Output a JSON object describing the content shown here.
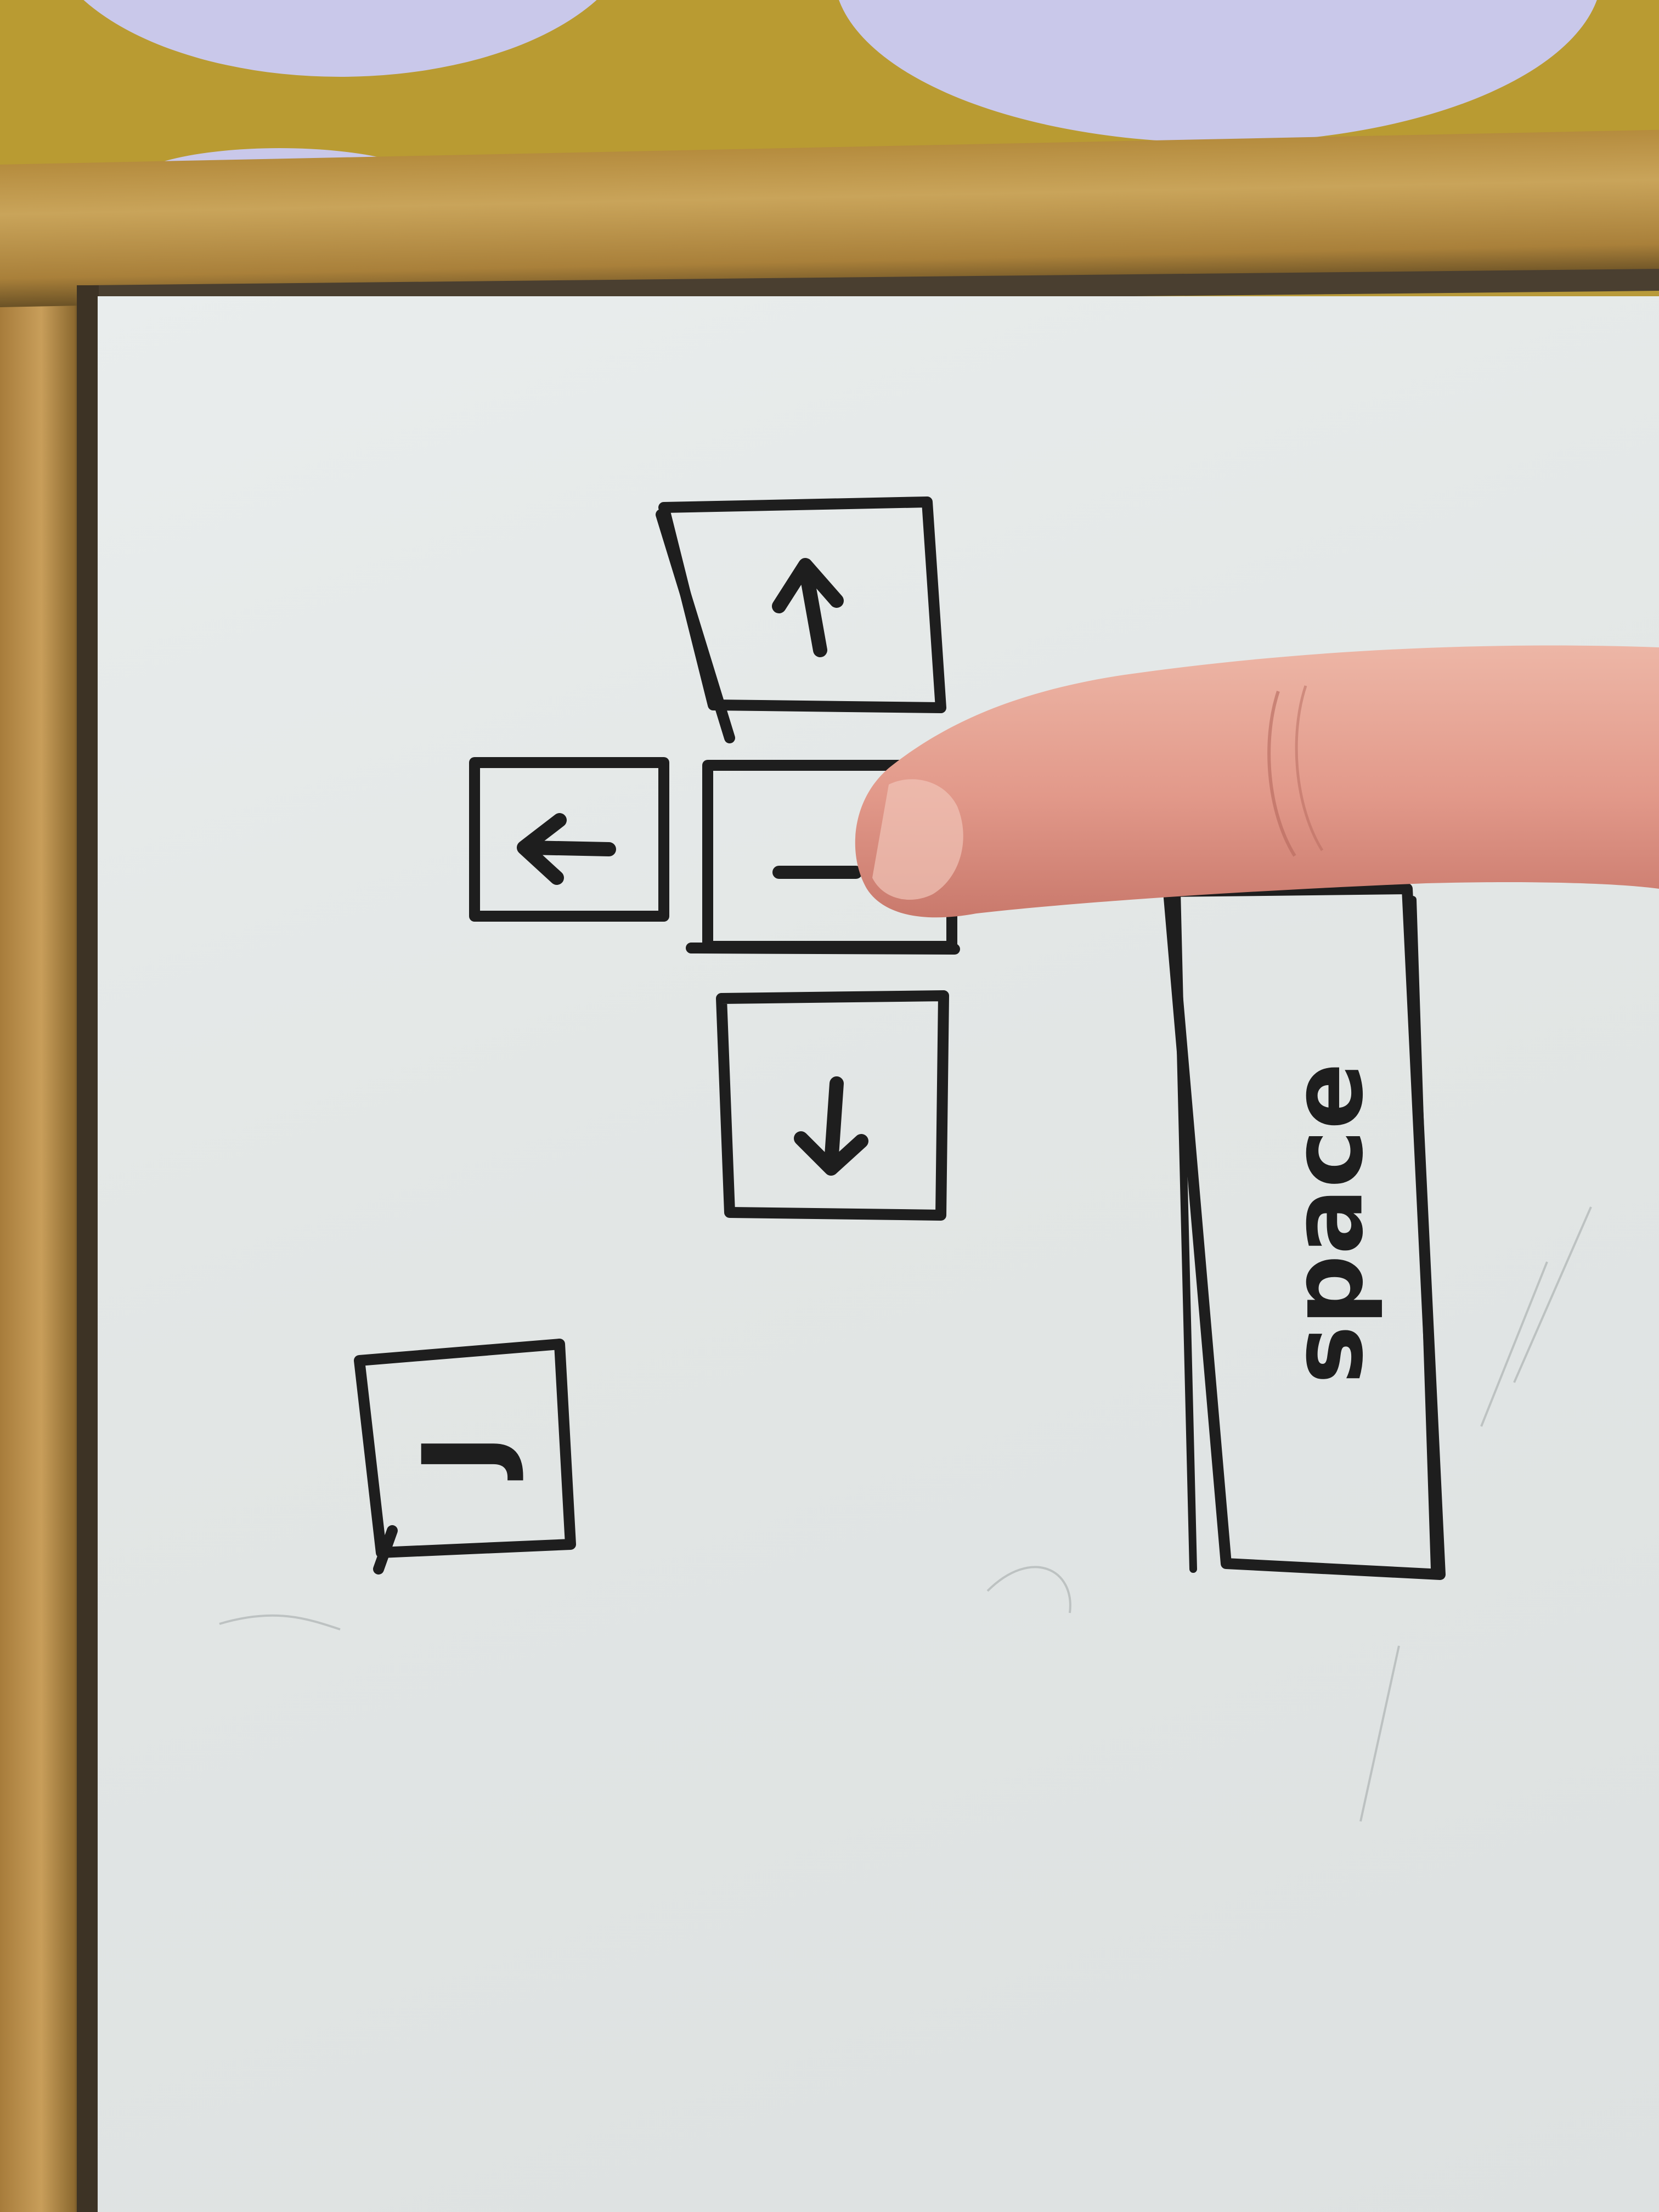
{
  "keys": {
    "up": {
      "icon": "arrow-up-icon"
    },
    "left": {
      "icon": "arrow-left-icon"
    },
    "right": {
      "icon": "arrow-right-icon"
    },
    "down": {
      "icon": "arrow-down-icon"
    },
    "jump": {
      "label": "J"
    },
    "space": {
      "label": "space"
    }
  },
  "colors": {
    "marker": "#1e1e1e",
    "board": "#e4e8e7",
    "frame": "#b58c3e",
    "fabric": "#b99b32",
    "fabric_flower": "#c9c8ea",
    "skin": "#e8a89a"
  }
}
